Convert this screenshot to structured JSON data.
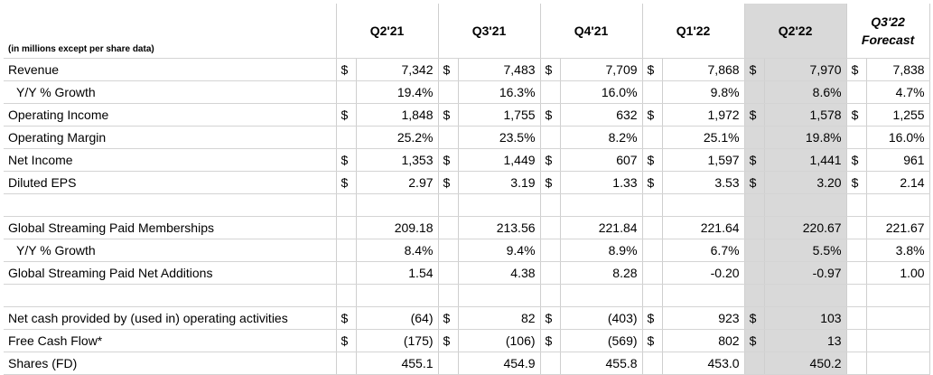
{
  "header": {
    "note": "(in millions except per share data)",
    "periods": [
      "Q2'21",
      "Q3'21",
      "Q4'21",
      "Q1'22",
      "Q2'22"
    ],
    "forecast_period": "Q3'22",
    "forecast_label": "Forecast"
  },
  "rows": [
    {
      "label": "Revenue",
      "dollar": true,
      "values": [
        "7,342",
        "7,483",
        "7,709",
        "7,868",
        "7,970",
        "7,838"
      ]
    },
    {
      "label": "Y/Y % Growth",
      "indent": true,
      "values": [
        "19.4%",
        "16.3%",
        "16.0%",
        "9.8%",
        "8.6%",
        "4.7%"
      ]
    },
    {
      "label": "Operating Income",
      "dollar": true,
      "values": [
        "1,848",
        "1,755",
        "632",
        "1,972",
        "1,578",
        "1,255"
      ]
    },
    {
      "label": "Operating Margin",
      "values": [
        "25.2%",
        "23.5%",
        "8.2%",
        "25.1%",
        "19.8%",
        "16.0%"
      ]
    },
    {
      "label": "Net Income",
      "dollar": true,
      "values": [
        "1,353",
        "1,449",
        "607",
        "1,597",
        "1,441",
        "961"
      ]
    },
    {
      "label": "Diluted EPS",
      "dollar": true,
      "values": [
        "2.97",
        "3.19",
        "1.33",
        "3.53",
        "3.20",
        "2.14"
      ]
    },
    {
      "blank": true
    },
    {
      "label": "Global Streaming Paid Memberships",
      "values": [
        "209.18",
        "213.56",
        "221.84",
        "221.64",
        "220.67",
        "221.67"
      ]
    },
    {
      "label": "Y/Y % Growth",
      "indent": true,
      "values": [
        "8.4%",
        "9.4%",
        "8.9%",
        "6.7%",
        "5.5%",
        "3.8%"
      ]
    },
    {
      "label": "Global Streaming Paid Net Additions",
      "values": [
        "1.54",
        "4.38",
        "8.28",
        "-0.20",
        "-0.97",
        "1.00"
      ]
    },
    {
      "blank": true
    },
    {
      "label": "Net cash provided by (used in) operating activities",
      "dollar": true,
      "dollar_cols": 5,
      "values": [
        "(64)",
        "82",
        "(403)",
        "923",
        "103",
        ""
      ]
    },
    {
      "label": "Free Cash Flow*",
      "dollar": true,
      "dollar_cols": 5,
      "values": [
        "(175)",
        "(106)",
        "(569)",
        "802",
        "13",
        ""
      ]
    },
    {
      "label": "Shares (FD)",
      "values": [
        "455.1",
        "454.9",
        "455.8",
        "453.0",
        "450.2",
        ""
      ]
    }
  ],
  "currency_symbol": "$"
}
